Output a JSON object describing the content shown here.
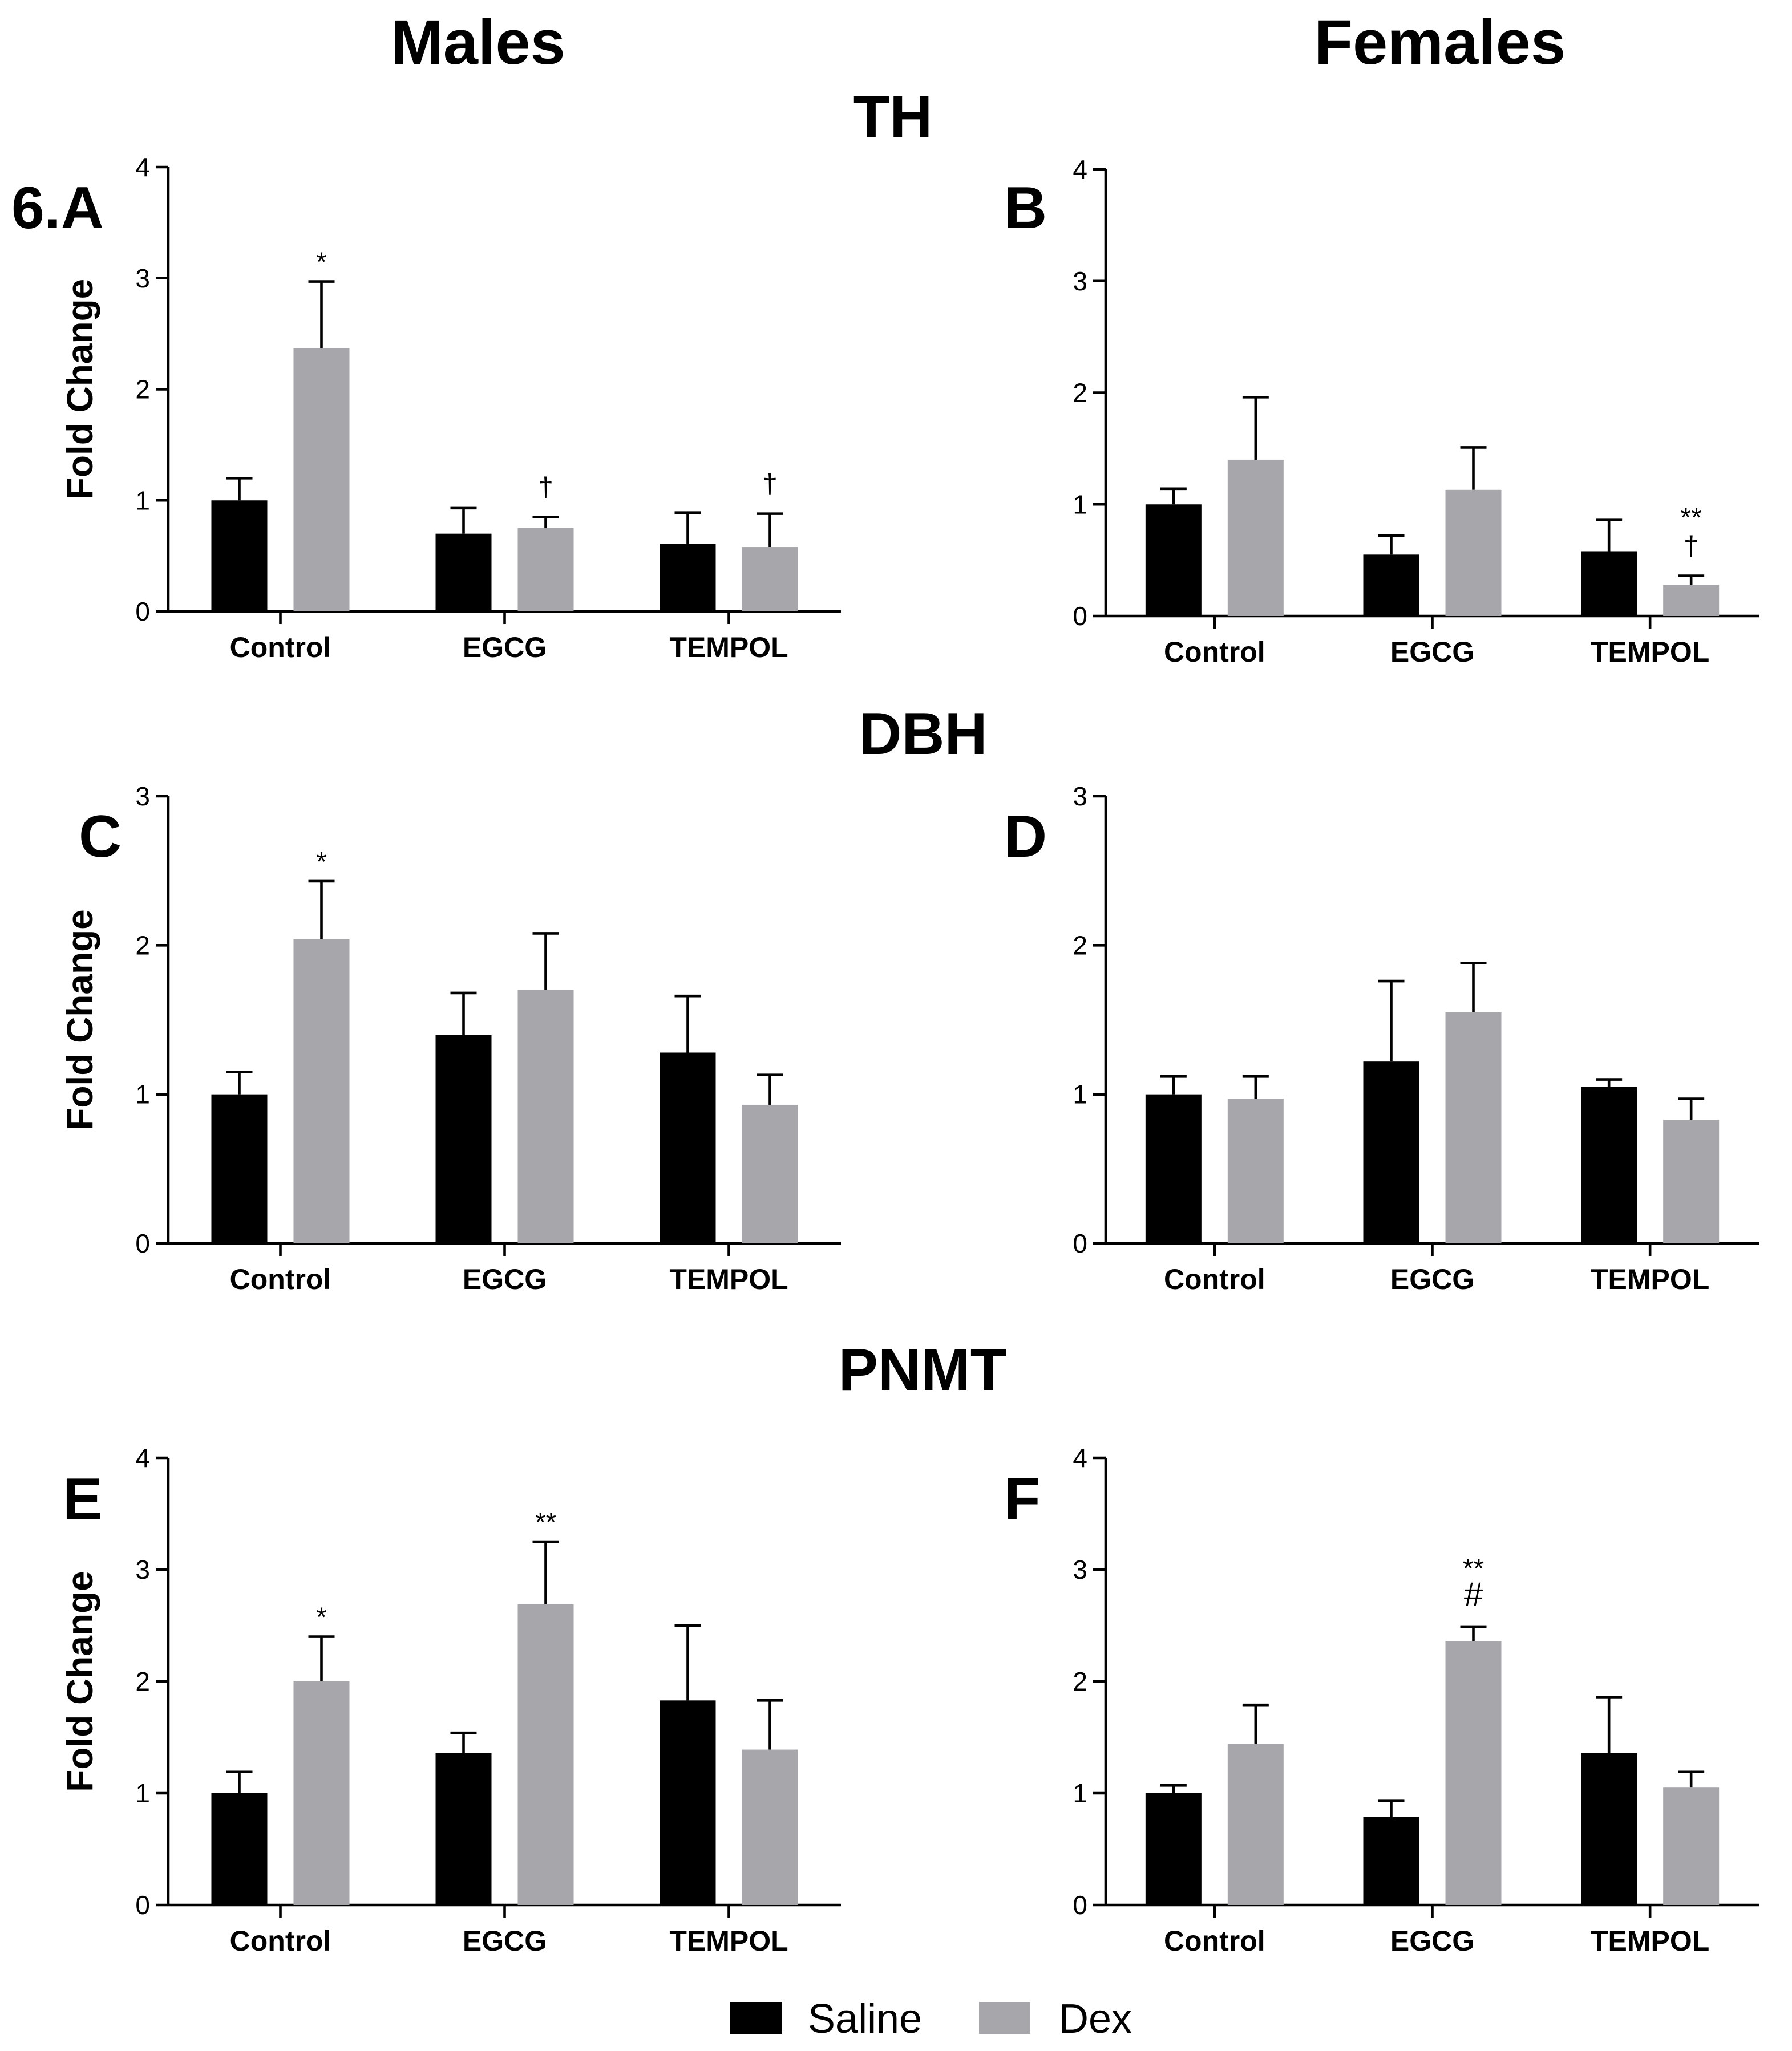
{
  "figure": {
    "column_titles": [
      "Males",
      "Females"
    ],
    "gene_titles": [
      "TH",
      "DBH",
      "PNMT"
    ],
    "legend": [
      {
        "label": "Saline",
        "color": "#000000"
      },
      {
        "label": "Dex",
        "color": "#a7a7ab"
      }
    ]
  },
  "chart_data": [
    {
      "type": "bar",
      "panel": "6.A",
      "gene": "TH",
      "sex": "Males",
      "ylabel": "Fold Change",
      "ylim": [
        0,
        4
      ],
      "yticks": [
        "0",
        "1",
        "2",
        "3",
        "4"
      ],
      "categories": [
        "Control",
        "EGCG",
        "TEMPOL"
      ],
      "series": [
        {
          "name": "Saline",
          "values": [
            1.0,
            0.7,
            0.61
          ],
          "errors": [
            0.2,
            0.23,
            0.28
          ]
        },
        {
          "name": "Dex",
          "values": [
            2.37,
            0.75,
            0.58
          ],
          "errors": [
            0.6,
            0.1,
            0.3
          ]
        }
      ],
      "annotations": [
        {
          "category": "Control",
          "series": "Dex",
          "lines": [
            "*"
          ]
        },
        {
          "category": "EGCG",
          "series": "Dex",
          "lines": [
            "†"
          ]
        },
        {
          "category": "TEMPOL",
          "series": "Dex",
          "lines": [
            "†"
          ]
        }
      ]
    },
    {
      "type": "bar",
      "panel": "B",
      "gene": "TH",
      "sex": "Females",
      "ylabel": "",
      "ylim": [
        0,
        4
      ],
      "yticks": [
        "0",
        "1",
        "2",
        "3",
        "4"
      ],
      "categories": [
        "Control",
        "EGCG",
        "TEMPOL"
      ],
      "series": [
        {
          "name": "Saline",
          "values": [
            1.0,
            0.55,
            0.58
          ],
          "errors": [
            0.14,
            0.17,
            0.28
          ]
        },
        {
          "name": "Dex",
          "values": [
            1.4,
            1.13,
            0.28
          ],
          "errors": [
            0.56,
            0.38,
            0.08
          ]
        }
      ],
      "annotations": [
        {
          "category": "TEMPOL",
          "series": "Dex",
          "lines": [
            "†",
            "**"
          ]
        }
      ]
    },
    {
      "type": "bar",
      "panel": "C",
      "gene": "DBH",
      "sex": "Males",
      "ylabel": "Fold Change",
      "ylim": [
        0,
        3
      ],
      "yticks": [
        "0",
        "1",
        "2",
        "3"
      ],
      "categories": [
        "Control",
        "EGCG",
        "TEMPOL"
      ],
      "series": [
        {
          "name": "Saline",
          "values": [
            1.0,
            1.4,
            1.28
          ],
          "errors": [
            0.15,
            0.28,
            0.38
          ]
        },
        {
          "name": "Dex",
          "values": [
            2.04,
            1.7,
            0.93
          ],
          "errors": [
            0.39,
            0.38,
            0.2
          ]
        }
      ],
      "annotations": [
        {
          "category": "Control",
          "series": "Dex",
          "lines": [
            "*"
          ]
        }
      ]
    },
    {
      "type": "bar",
      "panel": "D",
      "gene": "DBH",
      "sex": "Females",
      "ylabel": "",
      "ylim": [
        0,
        3
      ],
      "yticks": [
        "0",
        "1",
        "2",
        "3"
      ],
      "categories": [
        "Control",
        "EGCG",
        "TEMPOL"
      ],
      "series": [
        {
          "name": "Saline",
          "values": [
            1.0,
            1.22,
            1.05
          ],
          "errors": [
            0.12,
            0.54,
            0.05
          ]
        },
        {
          "name": "Dex",
          "values": [
            0.97,
            1.55,
            0.83
          ],
          "errors": [
            0.15,
            0.33,
            0.14
          ]
        }
      ],
      "annotations": []
    },
    {
      "type": "bar",
      "panel": "E",
      "gene": "PNMT",
      "sex": "Males",
      "ylabel": "Fold Change",
      "ylim": [
        0,
        4
      ],
      "yticks": [
        "0",
        "1",
        "2",
        "3",
        "4"
      ],
      "categories": [
        "Control",
        "EGCG",
        "TEMPOL"
      ],
      "series": [
        {
          "name": "Saline",
          "values": [
            1.0,
            1.36,
            1.83
          ],
          "errors": [
            0.19,
            0.18,
            0.67
          ]
        },
        {
          "name": "Dex",
          "values": [
            2.0,
            2.69,
            1.39
          ],
          "errors": [
            0.4,
            0.56,
            0.44
          ]
        }
      ],
      "annotations": [
        {
          "category": "Control",
          "series": "Dex",
          "lines": [
            "*"
          ]
        },
        {
          "category": "EGCG",
          "series": "Dex",
          "lines": [
            "**"
          ]
        }
      ]
    },
    {
      "type": "bar",
      "panel": "F",
      "gene": "PNMT",
      "sex": "Females",
      "ylabel": "",
      "ylim": [
        0,
        4
      ],
      "yticks": [
        "0",
        "1",
        "2",
        "3",
        "4"
      ],
      "categories": [
        "Control",
        "EGCG",
        "TEMPOL"
      ],
      "series": [
        {
          "name": "Saline",
          "values": [
            1.0,
            0.79,
            1.36
          ],
          "errors": [
            0.07,
            0.14,
            0.5
          ]
        },
        {
          "name": "Dex",
          "values": [
            1.44,
            2.36,
            1.05
          ],
          "errors": [
            0.35,
            0.13,
            0.14
          ]
        }
      ],
      "annotations": [
        {
          "category": "EGCG",
          "series": "Dex",
          "lines": [
            "#",
            "**"
          ]
        }
      ]
    }
  ]
}
